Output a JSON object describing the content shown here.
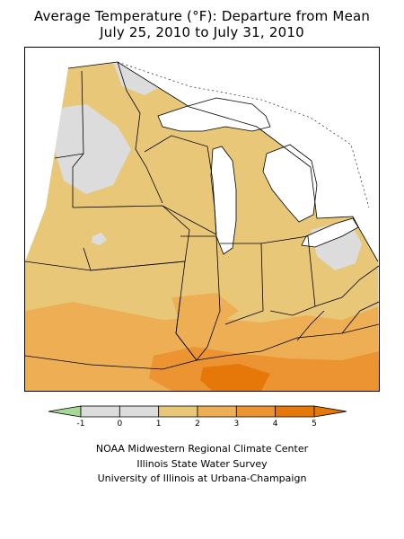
{
  "title_line1": "Average Temperature (°F): Departure from Mean",
  "title_line2": "July 25, 2010 to July 31, 2010",
  "legend": {
    "labels": [
      "-1",
      "0",
      "1",
      "2",
      "3",
      "4",
      "5"
    ],
    "values": [
      -1,
      0,
      1,
      2,
      3,
      4,
      5
    ],
    "bin_colors": [
      "#a6d996",
      "#dcdcdc",
      "#dcdcdc",
      "#e8c878",
      "#eeae54",
      "#ec9432",
      "#e6780a"
    ],
    "bins": [
      {
        "from": -1,
        "to": 0,
        "color": "#dcdcdc"
      },
      {
        "from": 0,
        "to": 1,
        "color": "#dcdcdc"
      },
      {
        "from": 1,
        "to": 2,
        "color": "#e8c878"
      },
      {
        "from": 2,
        "to": 3,
        "color": "#eeae54"
      },
      {
        "from": 3,
        "to": 4,
        "color": "#ec9432"
      },
      {
        "from": 4,
        "to": 5,
        "color": "#e6780a"
      }
    ],
    "below_color": "#a6d996",
    "above_color": "#e6780a"
  },
  "colors": {
    "near_normal": "#dcdcdc",
    "warm_1_2": "#e8c878",
    "warm_2_3": "#eeae54",
    "warm_3_4": "#ec9432",
    "warm_4_5": "#e6780a",
    "cool": "#a6d996",
    "water": "#ffffff"
  },
  "credits": [
    "NOAA Midwestern Regional Climate Center",
    "Illinois State Water Survey",
    "University of Illinois at Urbana-Champaign"
  ]
}
